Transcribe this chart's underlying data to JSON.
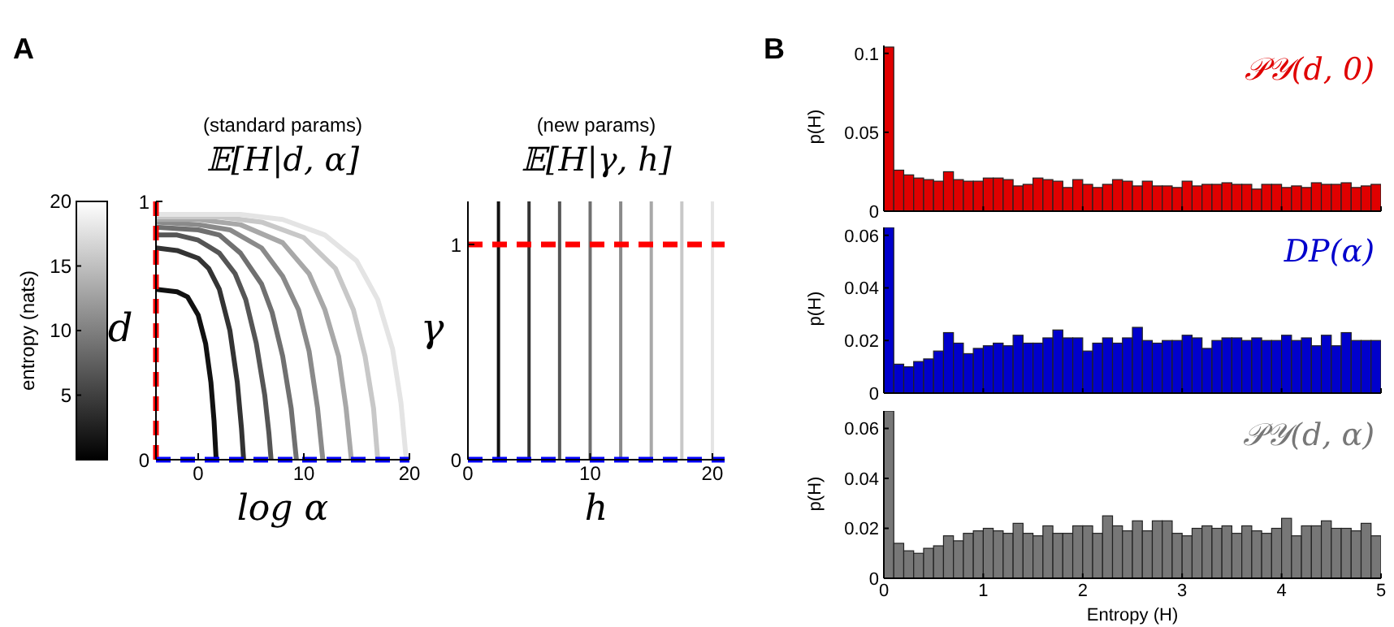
{
  "chart_data": [
    {
      "type": "line",
      "title": "(standard params)",
      "subtitle": "𝔼[H|d, α]",
      "xlabel": "log α",
      "ylabel": "d",
      "clabel": "entropy (nats)",
      "clim": [
        0,
        20
      ],
      "cticks": [
        5,
        10,
        15,
        20
      ],
      "xlim": [
        -4,
        20
      ],
      "xticks": [
        0,
        10,
        20
      ],
      "ylim": [
        0,
        1
      ],
      "yticks": [
        0,
        1
      ],
      "marker": "none",
      "annotations": [
        "A"
      ],
      "series": [
        {
          "color": "#111111",
          "x": [
            -4,
            -2,
            -1,
            0,
            0.7,
            1.2,
            1.5,
            1.7
          ],
          "values": [
            0.66,
            0.65,
            0.63,
            0.56,
            0.45,
            0.3,
            0.15,
            0
          ]
        },
        {
          "color": "#333333",
          "x": [
            -4,
            -2,
            0,
            1,
            2,
            3,
            3.7,
            4.1,
            4.3
          ],
          "values": [
            0.82,
            0.81,
            0.78,
            0.74,
            0.66,
            0.5,
            0.3,
            0.12,
            0
          ]
        },
        {
          "color": "#555555",
          "x": [
            -4,
            -2,
            0,
            2,
            3.5,
            4.5,
            5.5,
            6.3,
            6.7,
            6.9
          ],
          "values": [
            0.87,
            0.87,
            0.85,
            0.8,
            0.72,
            0.62,
            0.45,
            0.25,
            0.1,
            0
          ]
        },
        {
          "color": "#707070",
          "x": [
            -4,
            0,
            2,
            4,
            6,
            7,
            8,
            8.8,
            9.3
          ],
          "values": [
            0.9,
            0.89,
            0.87,
            0.8,
            0.68,
            0.57,
            0.4,
            0.2,
            0
          ]
        },
        {
          "color": "#8a8a8a",
          "x": [
            -4,
            0,
            3,
            6,
            8,
            9.5,
            10.5,
            11.3,
            11.8
          ],
          "values": [
            0.92,
            0.91,
            0.89,
            0.82,
            0.71,
            0.58,
            0.42,
            0.2,
            0
          ]
        },
        {
          "color": "#a8a8a8",
          "x": [
            -4,
            0,
            4,
            8,
            10.5,
            12,
            13.3,
            14,
            14.5
          ],
          "values": [
            0.93,
            0.93,
            0.91,
            0.84,
            0.72,
            0.58,
            0.4,
            0.2,
            0
          ]
        },
        {
          "color": "#c8c8c8",
          "x": [
            -4,
            2,
            6,
            10,
            13,
            14.7,
            15.8,
            16.6,
            17
          ],
          "values": [
            0.94,
            0.94,
            0.92,
            0.86,
            0.74,
            0.58,
            0.4,
            0.2,
            0
          ]
        },
        {
          "color": "#e4e4e4",
          "x": [
            -4,
            4,
            8,
            12,
            15,
            17,
            18.4,
            19.2,
            19.7
          ],
          "values": [
            0.95,
            0.95,
            0.93,
            0.87,
            0.77,
            0.62,
            0.43,
            0.22,
            0
          ]
        }
      ],
      "ref_lines": [
        {
          "axis": "x",
          "value": -4,
          "color": "#ff0000",
          "line_style": "dashed"
        },
        {
          "axis": "y",
          "value": 0,
          "color": "#0000ff",
          "line_style": "dashed"
        }
      ]
    },
    {
      "type": "line",
      "title": "(new params)",
      "subtitle": "𝔼[H|γ, h]",
      "xlabel": "h",
      "ylabel": "γ",
      "xlim": [
        0,
        21
      ],
      "xticks": [
        0,
        10,
        20
      ],
      "ylim": [
        0,
        1.2
      ],
      "yticks": [
        0,
        1
      ],
      "marker": "none",
      "series": [
        {
          "color": "#111111",
          "x": [
            2.5,
            2.5
          ],
          "values": [
            0,
            1.2
          ]
        },
        {
          "color": "#333333",
          "x": [
            5,
            5
          ],
          "values": [
            0,
            1.2
          ]
        },
        {
          "color": "#555555",
          "x": [
            7.5,
            7.5
          ],
          "values": [
            0,
            1.2
          ]
        },
        {
          "color": "#707070",
          "x": [
            10,
            10
          ],
          "values": [
            0,
            1.2
          ]
        },
        {
          "color": "#8a8a8a",
          "x": [
            12.5,
            12.5
          ],
          "values": [
            0,
            1.2
          ]
        },
        {
          "color": "#a8a8a8",
          "x": [
            15,
            15
          ],
          "values": [
            0,
            1.2
          ]
        },
        {
          "color": "#c8c8c8",
          "x": [
            17.5,
            17.5
          ],
          "values": [
            0,
            1.2
          ]
        },
        {
          "color": "#e4e4e4",
          "x": [
            20,
            20
          ],
          "values": [
            0,
            1.2
          ]
        }
      ],
      "ref_lines": [
        {
          "axis": "y",
          "value": 1,
          "color": "#ff0000",
          "line_style": "dashed"
        },
        {
          "axis": "y",
          "value": 0,
          "color": "#0000ff",
          "line_style": "dashed"
        }
      ]
    },
    {
      "type": "histogram",
      "ylabel": "p(H)",
      "tick_labels": "y",
      "xlim": [
        0,
        5
      ],
      "ylim": [
        0,
        0.105
      ],
      "yticks": [
        0,
        0.05,
        0.1
      ],
      "xticks": [
        0,
        1,
        2,
        3,
        4,
        5
      ],
      "annotations": [
        "B"
      ],
      "bins": [
        0,
        0.1,
        0.2,
        0.3,
        0.4,
        0.5,
        0.6,
        0.7,
        0.8,
        0.9,
        1,
        1.1,
        1.2,
        1.3,
        1.4,
        1.5,
        1.6,
        1.7,
        1.8,
        1.9,
        2,
        2.1,
        2.2,
        2.3,
        2.4,
        2.5,
        2.6,
        2.7,
        2.8,
        2.9,
        3,
        3.1,
        3.2,
        3.3,
        3.4,
        3.5,
        3.6,
        3.7,
        3.8,
        3.9,
        4,
        4.1,
        4.2,
        4.3,
        4.4,
        4.5,
        4.6,
        4.7,
        4.8,
        4.9,
        5
      ],
      "series": [
        {
          "name": "𝒫𝒴(d, 0)",
          "color": "#e00000",
          "values": [
            0.104,
            0.026,
            0.023,
            0.021,
            0.02,
            0.019,
            0.025,
            0.02,
            0.019,
            0.019,
            0.021,
            0.021,
            0.02,
            0.016,
            0.017,
            0.021,
            0.02,
            0.019,
            0.015,
            0.02,
            0.017,
            0.015,
            0.017,
            0.02,
            0.019,
            0.016,
            0.019,
            0.016,
            0.016,
            0.015,
            0.019,
            0.016,
            0.017,
            0.017,
            0.018,
            0.017,
            0.017,
            0.014,
            0.017,
            0.017,
            0.015,
            0.016,
            0.015,
            0.018,
            0.017,
            0.017,
            0.018,
            0.015,
            0.016,
            0.017
          ]
        }
      ]
    },
    {
      "type": "histogram",
      "ylabel": "p(H)",
      "tick_labels": "y",
      "xlim": [
        0,
        5
      ],
      "ylim": [
        0,
        0.063
      ],
      "yticks": [
        0,
        0.02,
        0.04,
        0.06
      ],
      "xticks": [
        0,
        1,
        2,
        3,
        4,
        5
      ],
      "bins": [
        0,
        0.1,
        0.2,
        0.3,
        0.4,
        0.5,
        0.6,
        0.7,
        0.8,
        0.9,
        1,
        1.1,
        1.2,
        1.3,
        1.4,
        1.5,
        1.6,
        1.7,
        1.8,
        1.9,
        2,
        2.1,
        2.2,
        2.3,
        2.4,
        2.5,
        2.6,
        2.7,
        2.8,
        2.9,
        3,
        3.1,
        3.2,
        3.3,
        3.4,
        3.5,
        3.6,
        3.7,
        3.8,
        3.9,
        4,
        4.1,
        4.2,
        4.3,
        4.4,
        4.5,
        4.6,
        4.7,
        4.8,
        4.9,
        5
      ],
      "series": [
        {
          "name": "DP(α)",
          "color": "#0000cc",
          "values": [
            0.063,
            0.011,
            0.01,
            0.012,
            0.013,
            0.016,
            0.023,
            0.019,
            0.015,
            0.017,
            0.018,
            0.019,
            0.018,
            0.022,
            0.019,
            0.019,
            0.021,
            0.024,
            0.021,
            0.021,
            0.016,
            0.019,
            0.021,
            0.019,
            0.021,
            0.025,
            0.02,
            0.019,
            0.02,
            0.02,
            0.022,
            0.021,
            0.017,
            0.02,
            0.021,
            0.021,
            0.02,
            0.021,
            0.02,
            0.02,
            0.022,
            0.02,
            0.021,
            0.018,
            0.022,
            0.018,
            0.023,
            0.02,
            0.02,
            0.02
          ]
        }
      ]
    },
    {
      "type": "histogram",
      "ylabel": "p(H)",
      "xlabel": "Entropy (H)",
      "xlim": [
        0,
        5
      ],
      "ylim": [
        0,
        0.067
      ],
      "yticks": [
        0,
        0.02,
        0.04,
        0.06
      ],
      "xticks": [
        0,
        1,
        2,
        3,
        4,
        5
      ],
      "bins": [
        0,
        0.1,
        0.2,
        0.3,
        0.4,
        0.5,
        0.6,
        0.7,
        0.8,
        0.9,
        1,
        1.1,
        1.2,
        1.3,
        1.4,
        1.5,
        1.6,
        1.7,
        1.8,
        1.9,
        2,
        2.1,
        2.2,
        2.3,
        2.4,
        2.5,
        2.6,
        2.7,
        2.8,
        2.9,
        3,
        3.1,
        3.2,
        3.3,
        3.4,
        3.5,
        3.6,
        3.7,
        3.8,
        3.9,
        4,
        4.1,
        4.2,
        4.3,
        4.4,
        4.5,
        4.6,
        4.7,
        4.8,
        4.9,
        5
      ],
      "series": [
        {
          "name": "𝒫𝒴(d, α)",
          "color": "#777777",
          "values": [
            0.067,
            0.014,
            0.011,
            0.01,
            0.012,
            0.013,
            0.017,
            0.015,
            0.018,
            0.019,
            0.02,
            0.019,
            0.018,
            0.022,
            0.018,
            0.017,
            0.021,
            0.018,
            0.018,
            0.021,
            0.021,
            0.018,
            0.025,
            0.021,
            0.019,
            0.023,
            0.019,
            0.023,
            0.023,
            0.018,
            0.017,
            0.02,
            0.021,
            0.02,
            0.021,
            0.018,
            0.021,
            0.019,
            0.018,
            0.02,
            0.024,
            0.017,
            0.021,
            0.021,
            0.023,
            0.02,
            0.02,
            0.019,
            0.022,
            0.017
          ]
        }
      ]
    }
  ]
}
